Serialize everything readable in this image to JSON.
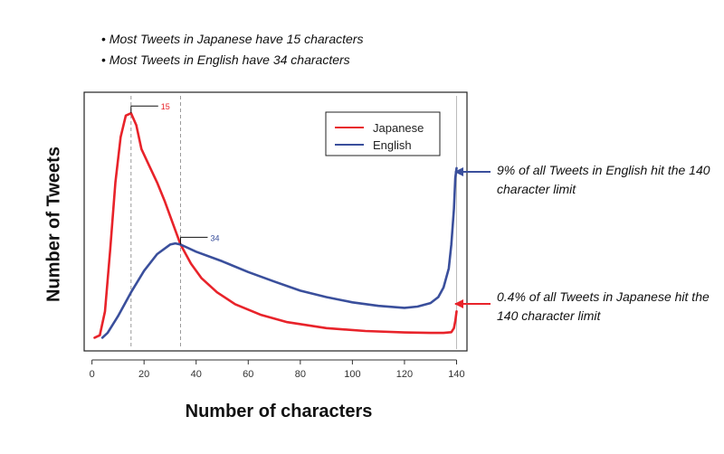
{
  "bullets": [
    "Most Tweets in Japanese have 15 characters",
    "Most Tweets in English have 34 characters"
  ],
  "annotations": {
    "english_limit": "9% of all Tweets in English hit the 140 character limit",
    "japanese_limit": "0.4% of all Tweets in Japanese hit the 140 character limit"
  },
  "colors": {
    "japanese": "#e8232a",
    "english": "#3a4f9c",
    "grid": "#999999"
  },
  "chart_data": {
    "type": "line",
    "xlabel": "Number of characters",
    "ylabel": "Number of Tweets",
    "xlim": [
      -3,
      144
    ],
    "ylim": [
      0,
      100
    ],
    "xticks": [
      0,
      20,
      40,
      60,
      80,
      100,
      120,
      140
    ],
    "legend_position": "top-right",
    "grid": false,
    "markers": [
      {
        "x": 15,
        "label": "15",
        "series": "Japanese"
      },
      {
        "x": 34,
        "label": "34",
        "series": "English"
      },
      {
        "x": 140,
        "label": "",
        "series": ""
      }
    ],
    "series": [
      {
        "name": "Japanese",
        "x": [
          1,
          3,
          5,
          7,
          9,
          11,
          13,
          15,
          17,
          19,
          22,
          25,
          28,
          31,
          34,
          38,
          42,
          48,
          55,
          65,
          75,
          90,
          105,
          120,
          130,
          135,
          138,
          139,
          139.5,
          140
        ],
        "y": [
          1,
          2,
          12,
          38,
          66,
          85,
          94,
          95,
          90,
          80,
          73,
          66,
          58,
          49,
          40,
          32,
          26,
          20,
          15,
          10.5,
          7.5,
          5,
          3.8,
          3.2,
          3,
          3,
          3.3,
          5,
          8,
          12
        ]
      },
      {
        "name": "English",
        "x": [
          4,
          6,
          10,
          15,
          20,
          25,
          30,
          32,
          34,
          36,
          40,
          50,
          60,
          70,
          80,
          90,
          100,
          110,
          120,
          125,
          130,
          133,
          135,
          137,
          138,
          139,
          139.5,
          140
        ],
        "y": [
          1,
          3,
          10,
          20,
          29,
          36,
          40,
          40.5,
          40,
          39,
          37,
          33,
          28.5,
          24.5,
          20.7,
          18,
          15.8,
          14.3,
          13.5,
          14,
          15.5,
          18,
          22,
          30,
          40,
          55,
          68,
          72
        ]
      }
    ]
  }
}
